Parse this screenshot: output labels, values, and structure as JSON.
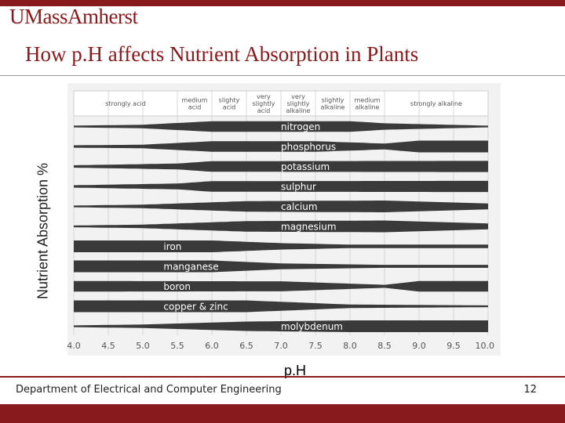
{
  "header": {
    "logo_text": "UMassAmherst"
  },
  "slide": {
    "title": "How p.H affects Nutrient Absorption in Plants",
    "y_axis_label": "Nutrient Absorption %",
    "x_axis_label": "p.H"
  },
  "footer": {
    "department": "Department of Electrical and Computer Engineering",
    "page": "12"
  },
  "colors": {
    "brand": "#891a1c",
    "bar": "#3a3a3a",
    "panel": "#f2f2f2"
  },
  "diagram": {
    "ph_range": [
      4.0,
      10.0
    ],
    "ticks": [
      "4.0",
      "4.5",
      "5.0",
      "5.5",
      "6.0",
      "6.5",
      "7.0",
      "7.5",
      "8.0",
      "8.5",
      "9.0",
      "9.5",
      "10.0"
    ],
    "zones": [
      {
        "lines": [
          "strongly acid"
        ],
        "from": 4.0,
        "to": 5.5
      },
      {
        "lines": [
          "medium",
          "acid"
        ],
        "from": 5.5,
        "to": 6.0
      },
      {
        "lines": [
          "slighty",
          "acid"
        ],
        "from": 6.0,
        "to": 6.5
      },
      {
        "lines": [
          "very",
          "slightly",
          "acid"
        ],
        "from": 6.5,
        "to": 7.0
      },
      {
        "lines": [
          "very",
          "slightly",
          "alkaline"
        ],
        "from": 7.0,
        "to": 7.5
      },
      {
        "lines": [
          "slightly",
          "alkaline"
        ],
        "from": 7.5,
        "to": 8.0
      },
      {
        "lines": [
          "medium",
          "alkaline"
        ],
        "from": 8.0,
        "to": 8.5
      },
      {
        "lines": [
          "strongly alkaline"
        ],
        "from": 8.5,
        "to": 10.0
      }
    ],
    "nutrients": [
      {
        "name": "nitrogen",
        "label_at": 7.0,
        "profile": [
          [
            4.0,
            0.15
          ],
          [
            5.0,
            0.3
          ],
          [
            6.0,
            0.9
          ],
          [
            8.0,
            0.9
          ],
          [
            8.5,
            0.55
          ],
          [
            10.0,
            0.15
          ]
        ]
      },
      {
        "name": "phosphorus",
        "label_at": 7.0,
        "profile": [
          [
            4.0,
            0.2
          ],
          [
            5.0,
            0.3
          ],
          [
            6.0,
            0.9
          ],
          [
            7.5,
            0.9
          ],
          [
            8.5,
            0.5
          ],
          [
            9.0,
            1.0
          ],
          [
            10.0,
            1.0
          ]
        ]
      },
      {
        "name": "potassium",
        "label_at": 7.0,
        "profile": [
          [
            4.0,
            0.2
          ],
          [
            5.5,
            0.5
          ],
          [
            6.0,
            0.9
          ],
          [
            10.0,
            0.95
          ]
        ]
      },
      {
        "name": "sulphur",
        "label_at": 7.0,
        "profile": [
          [
            4.0,
            0.2
          ],
          [
            5.5,
            0.5
          ],
          [
            6.0,
            0.9
          ],
          [
            10.0,
            0.95
          ]
        ]
      },
      {
        "name": "calcium",
        "label_at": 7.0,
        "profile": [
          [
            4.0,
            0.15
          ],
          [
            5.0,
            0.3
          ],
          [
            6.5,
            0.9
          ],
          [
            8.5,
            1.0
          ],
          [
            10.0,
            0.5
          ]
        ]
      },
      {
        "name": "magnesium",
        "label_at": 7.0,
        "profile": [
          [
            4.0,
            0.15
          ],
          [
            5.0,
            0.3
          ],
          [
            6.5,
            0.9
          ],
          [
            8.5,
            1.0
          ],
          [
            10.0,
            0.5
          ]
        ]
      },
      {
        "name": "iron",
        "label_at": 5.3,
        "profile": [
          [
            4.0,
            1.0
          ],
          [
            6.0,
            1.0
          ],
          [
            7.0,
            0.55
          ],
          [
            8.0,
            0.3
          ],
          [
            10.0,
            0.3
          ]
        ]
      },
      {
        "name": "manganese",
        "label_at": 5.3,
        "profile": [
          [
            4.0,
            1.0
          ],
          [
            6.0,
            1.0
          ],
          [
            7.0,
            0.5
          ],
          [
            8.5,
            0.25
          ],
          [
            10.0,
            0.25
          ]
        ]
      },
      {
        "name": "boron",
        "label_at": 5.3,
        "profile": [
          [
            4.0,
            0.9
          ],
          [
            7.0,
            0.85
          ],
          [
            8.5,
            0.25
          ],
          [
            9.0,
            0.9
          ],
          [
            10.0,
            0.9
          ]
        ]
      },
      {
        "name": "copper & zinc",
        "label_at": 5.3,
        "profile": [
          [
            4.0,
            1.0
          ],
          [
            6.5,
            1.0
          ],
          [
            8.0,
            0.3
          ],
          [
            10.0,
            0.15
          ]
        ]
      },
      {
        "name": "molybdenum",
        "label_at": 7.0,
        "profile": [
          [
            4.0,
            0.15
          ],
          [
            5.0,
            0.3
          ],
          [
            6.5,
            0.8
          ],
          [
            8.0,
            1.0
          ],
          [
            10.0,
            1.0
          ]
        ]
      }
    ]
  }
}
